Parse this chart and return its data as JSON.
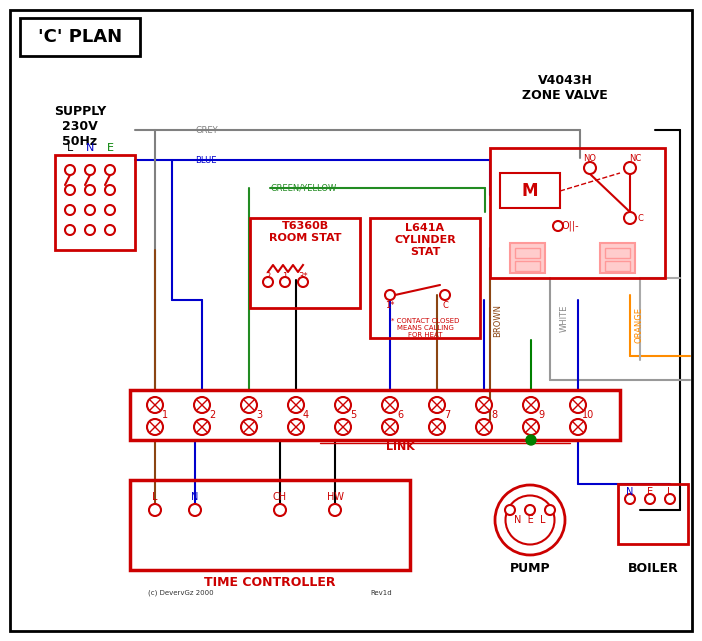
{
  "title": "'C' PLAN",
  "bg_color": "#ffffff",
  "border_color": "#000000",
  "red": "#cc0000",
  "dark_red": "#cc0000",
  "grey_wire": "#808080",
  "blue_wire": "#0000cc",
  "green_wire": "#008000",
  "green_yellow_wire": "#228B22",
  "brown_wire": "#8B4513",
  "white_wire": "#cccccc",
  "orange_wire": "#FF8C00",
  "black_wire": "#000000",
  "supply_text": "SUPPLY\n230V\n50Hz",
  "zone_valve_text": "V4043H\nZONE VALVE",
  "room_stat_text": "T6360B\nROOM STAT",
  "cylinder_stat_text": "L641A\nCYLINDER\nSTAT",
  "time_controller_text": "TIME CONTROLLER",
  "pump_text": "PUMP",
  "boiler_text": "BOILER",
  "link_text": "LINK"
}
